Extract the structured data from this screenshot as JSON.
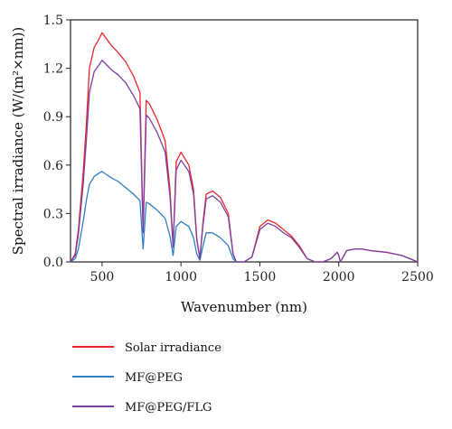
{
  "chart_data": {
    "type": "line",
    "xlabel": "Wavenumber (nm)",
    "ylabel": "Spectral irradiance (W/(m²×nm))",
    "xlim": [
      300,
      2500
    ],
    "ylim": [
      0,
      1.5
    ],
    "x_ticks": [
      "500",
      "1000",
      "1500",
      "2000",
      "2500"
    ],
    "x_tick_values": [
      500,
      1000,
      1500,
      2000,
      2500
    ],
    "y_ticks": [
      "0.0",
      "0.3",
      "0.6",
      "0.9",
      "1.2",
      "1.5"
    ],
    "y_tick_values": [
      0,
      0.3,
      0.6,
      0.9,
      1.2,
      1.5
    ],
    "grid": false,
    "legend_position": "bottom",
    "series": [
      {
        "name": "Solar irradiance",
        "color": "#e8262a",
        "x": [
          300,
          330,
          350,
          380,
          400,
          420,
          450,
          480,
          500,
          530,
          560,
          600,
          650,
          700,
          720,
          740,
          760,
          780,
          800,
          850,
          900,
          930,
          950,
          970,
          1000,
          1050,
          1080,
          1100,
          1120,
          1140,
          1160,
          1200,
          1250,
          1300,
          1330,
          1350,
          1400,
          1450,
          1500,
          1550,
          1600,
          1650,
          1700,
          1750,
          1800,
          1850,
          1900,
          1950,
          1990,
          2000,
          2010,
          2050,
          2100,
          2150,
          2200,
          2300,
          2400,
          2450,
          2500
        ],
        "y": [
          0.0,
          0.05,
          0.2,
          0.55,
          0.85,
          1.2,
          1.33,
          1.38,
          1.42,
          1.38,
          1.34,
          1.3,
          1.24,
          1.15,
          1.1,
          1.05,
          0.2,
          1.0,
          0.98,
          0.88,
          0.75,
          0.45,
          0.1,
          0.62,
          0.68,
          0.6,
          0.45,
          0.15,
          0.02,
          0.25,
          0.42,
          0.44,
          0.4,
          0.3,
          0.05,
          0.0,
          0.0,
          0.03,
          0.22,
          0.26,
          0.24,
          0.2,
          0.16,
          0.1,
          0.02,
          0.0,
          0.0,
          0.02,
          0.06,
          0.04,
          0.0,
          0.07,
          0.08,
          0.08,
          0.07,
          0.06,
          0.04,
          0.02,
          0.0
        ]
      },
      {
        "name": "MF@PEG",
        "color": "#2e7fc7",
        "x": [
          300,
          330,
          350,
          380,
          400,
          420,
          450,
          480,
          500,
          530,
          560,
          600,
          650,
          700,
          720,
          740,
          760,
          780,
          800,
          850,
          900,
          930,
          950,
          970,
          1000,
          1050,
          1080,
          1100,
          1120,
          1140,
          1160,
          1200,
          1250,
          1300,
          1330,
          1350,
          1400
        ],
        "y": [
          0.0,
          0.02,
          0.08,
          0.25,
          0.38,
          0.48,
          0.53,
          0.55,
          0.56,
          0.54,
          0.52,
          0.5,
          0.46,
          0.42,
          0.4,
          0.38,
          0.08,
          0.37,
          0.36,
          0.32,
          0.27,
          0.16,
          0.04,
          0.22,
          0.25,
          0.22,
          0.15,
          0.05,
          0.01,
          0.1,
          0.18,
          0.18,
          0.15,
          0.1,
          0.02,
          0.0,
          0.0
        ]
      },
      {
        "name": "MF@PEG/FLG",
        "color": "#7b3fa6",
        "x": [
          300,
          330,
          350,
          380,
          400,
          420,
          450,
          480,
          500,
          530,
          560,
          600,
          650,
          700,
          720,
          740,
          760,
          780,
          800,
          850,
          900,
          930,
          950,
          970,
          1000,
          1050,
          1080,
          1100,
          1120,
          1140,
          1160,
          1200,
          1250,
          1300,
          1330,
          1350,
          1400,
          1450,
          1500,
          1550,
          1600,
          1650,
          1700,
          1750,
          1800,
          1850,
          1900,
          1950,
          1990,
          2000,
          2010,
          2050,
          2100,
          2150,
          2200,
          2300,
          2400,
          2450,
          2500
        ],
        "y": [
          0.0,
          0.04,
          0.17,
          0.48,
          0.75,
          1.05,
          1.18,
          1.22,
          1.25,
          1.22,
          1.19,
          1.16,
          1.11,
          1.03,
          0.99,
          0.95,
          0.18,
          0.91,
          0.89,
          0.8,
          0.68,
          0.41,
          0.09,
          0.57,
          0.63,
          0.56,
          0.42,
          0.14,
          0.02,
          0.23,
          0.39,
          0.41,
          0.37,
          0.28,
          0.05,
          0.0,
          0.0,
          0.03,
          0.2,
          0.24,
          0.22,
          0.18,
          0.15,
          0.09,
          0.02,
          0.0,
          0.0,
          0.02,
          0.06,
          0.04,
          0.0,
          0.07,
          0.08,
          0.08,
          0.07,
          0.06,
          0.04,
          0.02,
          0.0
        ]
      }
    ]
  }
}
